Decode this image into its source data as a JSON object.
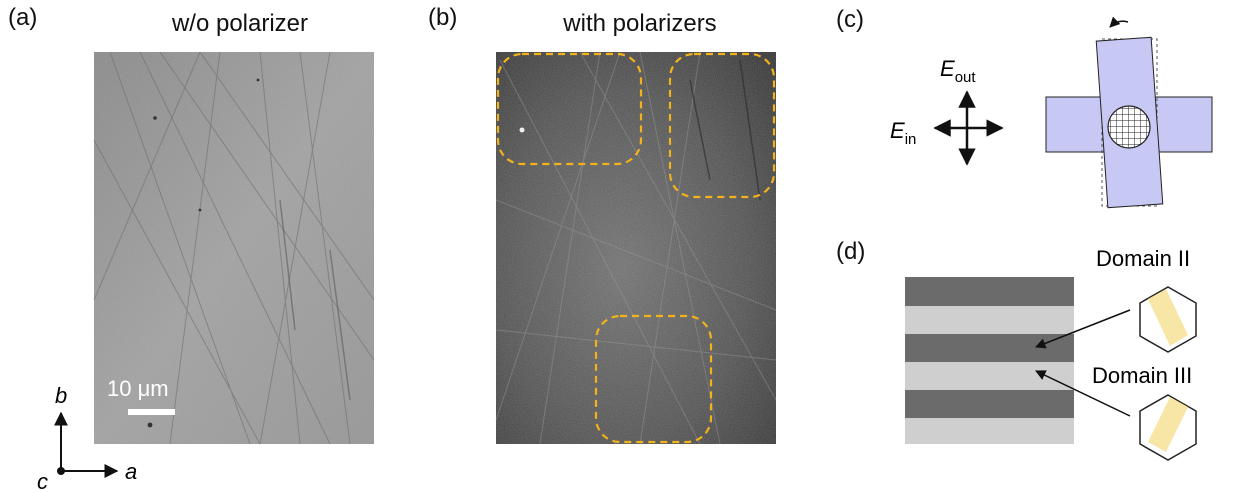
{
  "panels": {
    "a": {
      "label": "(a)",
      "title": "w/o polarizer",
      "scalebar": "10 μm"
    },
    "b": {
      "label": "(b)",
      "title": "with polarizers"
    },
    "c": {
      "label": "(c)",
      "e_out": "E",
      "e_out_sub": "out",
      "e_in": "E",
      "e_in_sub": "in"
    },
    "d": {
      "label": "(d)",
      "domain2": "Domain II",
      "domain3": "Domain III"
    }
  },
  "axes": {
    "b": "b",
    "c": "c",
    "a": "a"
  },
  "colors": {
    "highlight_box": "#f2b21a",
    "sample_fill": "#c8c8f4",
    "domain_fill": "#f8e6a6",
    "stripe_dark": "#6b6b6b",
    "stripe_light": "#cfcfcf"
  }
}
